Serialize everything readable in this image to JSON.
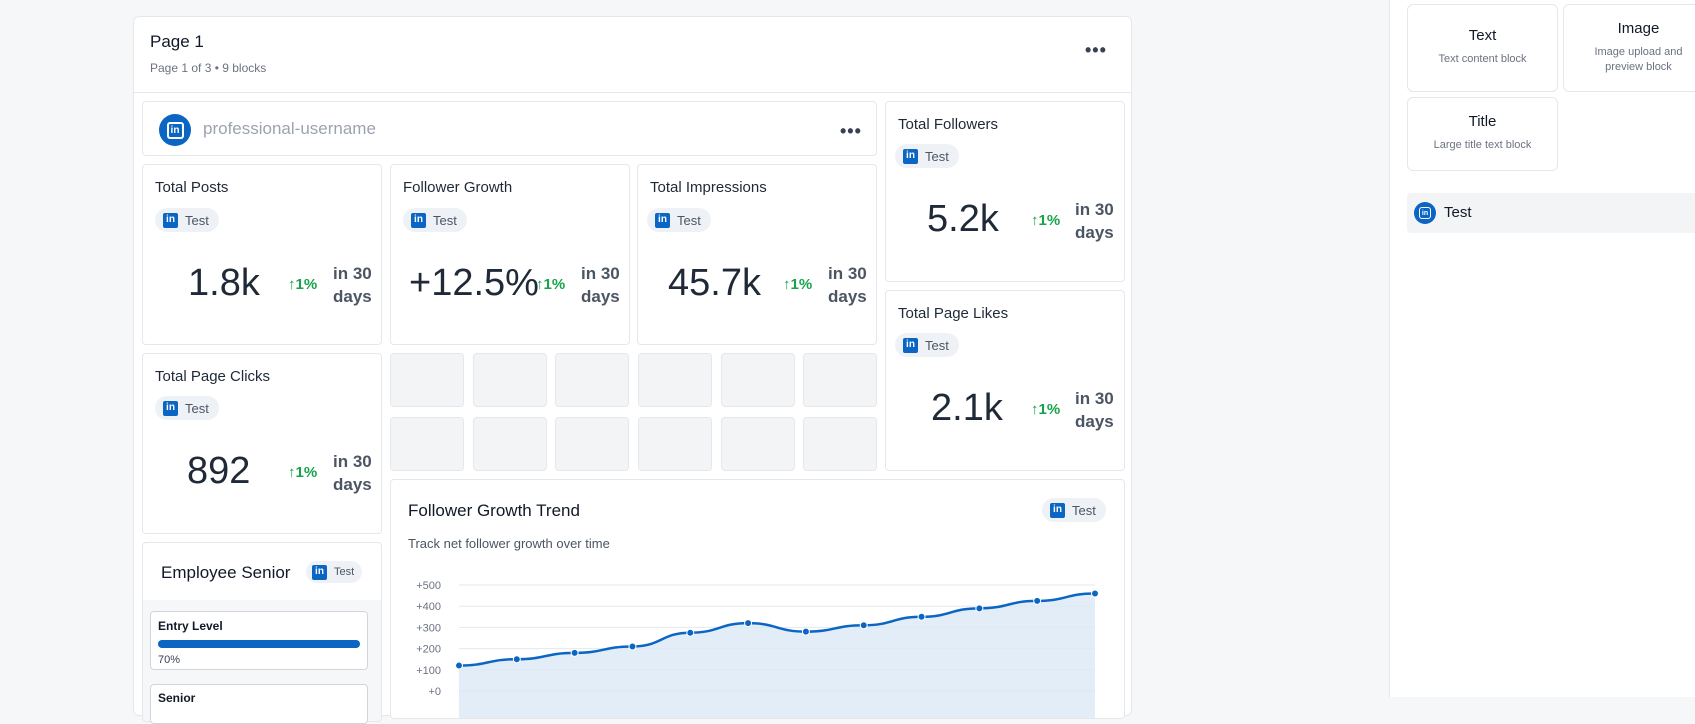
{
  "page": {
    "title": "Page 1",
    "subtitle": "Page 1 of 3 • 9 blocks"
  },
  "profile": {
    "username_placeholder": "professional-username"
  },
  "tag_label": "Test",
  "metrics": [
    {
      "title": "Total Posts",
      "value": "1.8k",
      "trend": "1%",
      "period_line1": "in 30",
      "period_line2": "days"
    },
    {
      "title": "Follower Growth",
      "value": "+12.5%",
      "trend": "1%",
      "period_line1": "in 30",
      "period_line2": "days"
    },
    {
      "title": "Total Impressions",
      "value": "45.7k",
      "trend": "1%",
      "period_line1": "in 30",
      "period_line2": "days"
    },
    {
      "title": "Total Followers",
      "value": "5.2k",
      "trend": "1%",
      "period_line1": "in 30",
      "period_line2": "days"
    },
    {
      "title": "Total Page Likes",
      "value": "2.1k",
      "trend": "1%",
      "period_line1": "in 30",
      "period_line2": "days"
    },
    {
      "title": "Total Page Clicks",
      "value": "892",
      "trend": "1%",
      "period_line1": "in 30",
      "period_line2": "days"
    }
  ],
  "employee": {
    "title": "Employee Senior",
    "bars": [
      {
        "label": "Entry Level",
        "percent_text": "70%",
        "fill": 1.0
      },
      {
        "label": "Senior"
      }
    ]
  },
  "chart_data": {
    "type": "area",
    "title": "Follower Growth Trend",
    "subtitle": "Track net follower growth over time",
    "y_ticks": [
      "+500",
      "+400",
      "+300",
      "+200",
      "+100",
      "+0"
    ],
    "ylim": [
      0,
      500
    ],
    "values": [
      120,
      150,
      180,
      210,
      275,
      320,
      280,
      310,
      350,
      390,
      425,
      460
    ],
    "grid": true,
    "colors": {
      "line": "#0a66c2",
      "fill": "#dbe9f5"
    }
  },
  "sidebar": {
    "tools": [
      {
        "title": "Text",
        "desc": "Text content block"
      },
      {
        "title": "Image",
        "desc": "Image upload and preview block"
      },
      {
        "title": "Title",
        "desc": "Large title text block"
      }
    ],
    "account_label": "Test"
  },
  "colors": {
    "accent": "#0a66c2",
    "trend": "#16a34a"
  }
}
